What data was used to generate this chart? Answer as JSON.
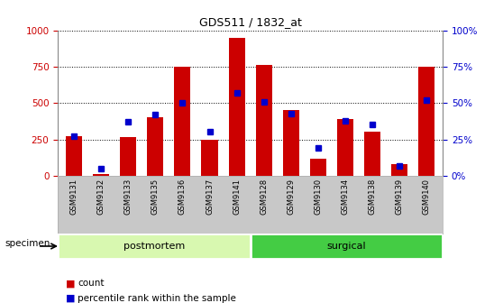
{
  "title": "GDS511 / 1832_at",
  "samples": [
    "GSM9131",
    "GSM9132",
    "GSM9133",
    "GSM9135",
    "GSM9136",
    "GSM9137",
    "GSM9141",
    "GSM9128",
    "GSM9129",
    "GSM9130",
    "GSM9134",
    "GSM9138",
    "GSM9139",
    "GSM9140"
  ],
  "counts": [
    270,
    10,
    268,
    400,
    750,
    250,
    950,
    760,
    450,
    120,
    390,
    300,
    80,
    750
  ],
  "percentiles": [
    27,
    5,
    37,
    42,
    50,
    30,
    57,
    51,
    43,
    19,
    38,
    35,
    7,
    52
  ],
  "groups": [
    {
      "label": "postmortem",
      "start": 0,
      "end": 7,
      "color": "#d8f8b0"
    },
    {
      "label": "surgical",
      "start": 7,
      "end": 14,
      "color": "#44cc44"
    }
  ],
  "bar_color": "#cc0000",
  "dot_color": "#0000cc",
  "left_axis_color": "#cc0000",
  "right_axis_color": "#0000cc",
  "ylim_left": [
    0,
    1000
  ],
  "ylim_right": [
    0,
    100
  ],
  "yticks_left": [
    0,
    250,
    500,
    750,
    1000
  ],
  "ytick_labels_right": [
    "0%",
    "25%",
    "50%",
    "75%",
    "100%"
  ],
  "yticks_right": [
    0,
    25,
    50,
    75,
    100
  ],
  "background_color": "#ffffff",
  "tick_bg_color": "#c8c8c8",
  "specimen_label": "specimen",
  "legend_count": "count",
  "legend_percentile": "percentile rank within the sample",
  "postmortem_color": "#d8f8b0",
  "surgical_color": "#44cc44"
}
